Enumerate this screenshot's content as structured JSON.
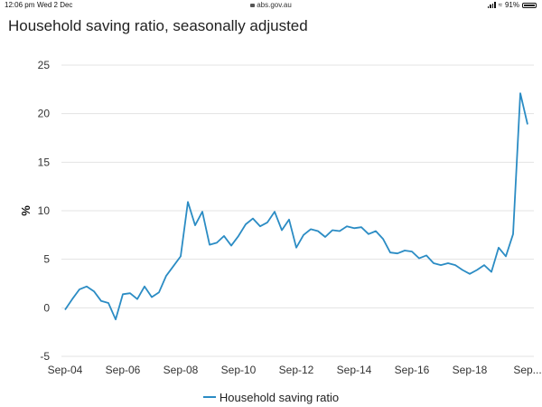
{
  "status_bar": {
    "time": "12:06 pm",
    "date": "Wed 2 Dec",
    "url": "abs.gov.au",
    "battery": "91%"
  },
  "chart_data": {
    "type": "line",
    "title": "Household saving ratio, seasonally adjusted",
    "ylabel": "%",
    "xlabel": "",
    "ylim": [
      -5,
      25
    ],
    "yticks": [
      -5,
      0,
      5,
      10,
      15,
      20,
      25
    ],
    "xtick_labels": [
      "Sep-04",
      "Sep-06",
      "Sep-08",
      "Sep-10",
      "Sep-12",
      "Sep-14",
      "Sep-16",
      "Sep-18",
      "Sep..."
    ],
    "grid": true,
    "legend_position": "bottom",
    "colors": {
      "series": "#2b8cc4",
      "grid": "#e3e3e3"
    },
    "x": [
      "Sep-04",
      "Dec-04",
      "Mar-05",
      "Jun-05",
      "Sep-05",
      "Dec-05",
      "Mar-06",
      "Jun-06",
      "Sep-06",
      "Dec-06",
      "Mar-07",
      "Jun-07",
      "Sep-07",
      "Dec-07",
      "Mar-08",
      "Jun-08",
      "Sep-08",
      "Dec-08",
      "Mar-09",
      "Jun-09",
      "Sep-09",
      "Dec-09",
      "Mar-10",
      "Jun-10",
      "Sep-10",
      "Dec-10",
      "Mar-11",
      "Jun-11",
      "Sep-11",
      "Dec-11",
      "Mar-12",
      "Jun-12",
      "Sep-12",
      "Dec-12",
      "Mar-13",
      "Jun-13",
      "Sep-13",
      "Dec-13",
      "Mar-14",
      "Jun-14",
      "Sep-14",
      "Dec-14",
      "Mar-15",
      "Jun-15",
      "Sep-15",
      "Dec-15",
      "Mar-16",
      "Jun-16",
      "Sep-16",
      "Dec-16",
      "Mar-17",
      "Jun-17",
      "Sep-17",
      "Dec-17",
      "Mar-18",
      "Jun-18",
      "Sep-18",
      "Dec-18",
      "Mar-19",
      "Jun-19",
      "Sep-19",
      "Dec-19",
      "Mar-20",
      "Jun-20",
      "Sep-20"
    ],
    "series": [
      {
        "name": "Household saving ratio",
        "values": [
          -0.2,
          0.9,
          1.9,
          2.2,
          1.7,
          0.7,
          0.5,
          -1.2,
          1.4,
          1.5,
          0.9,
          2.2,
          1.1,
          1.6,
          3.3,
          4.3,
          5.3,
          10.9,
          8.5,
          9.9,
          6.5,
          6.7,
          7.4,
          6.4,
          7.4,
          8.6,
          9.2,
          8.4,
          8.8,
          9.9,
          8.0,
          9.1,
          6.2,
          7.5,
          8.1,
          7.9,
          7.3,
          8.0,
          7.9,
          8.4,
          8.2,
          8.3,
          7.6,
          7.9,
          7.1,
          5.7,
          5.6,
          5.9,
          5.8,
          5.1,
          5.4,
          4.6,
          4.4,
          4.6,
          4.4,
          3.9,
          3.5,
          3.9,
          4.4,
          3.7,
          6.2,
          5.3,
          7.6,
          22.1,
          18.9
        ]
      }
    ]
  }
}
